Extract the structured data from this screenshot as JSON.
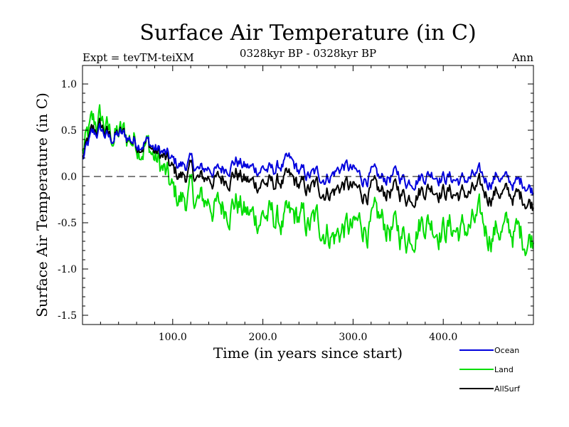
{
  "chart_data": {
    "type": "line",
    "title": "Surface Air Temperature (in C)",
    "subtitle_left": "Expt = tevTM-teiXM",
    "subtitle_center": "0328kyr BP - 0328kyr BP",
    "subtitle_right": "Ann",
    "xlabel": "Time (in years since start)",
    "ylabel": "Surface Air Temperature (in C)",
    "xlim": [
      0,
      500
    ],
    "ylim": [
      -1.6,
      1.2
    ],
    "x_ticks": [
      100,
      200,
      300,
      400
    ],
    "x_tick_labels": [
      "100.0",
      "200.0",
      "300.0",
      "400.0"
    ],
    "y_ticks": [
      -1.5,
      -1.0,
      -0.5,
      0.0,
      0.5,
      1.0
    ],
    "y_tick_labels": [
      "-1.5",
      "-1.0",
      "-0.5",
      "0.0",
      "0.5",
      "1.0"
    ],
    "reference_line": 0.0,
    "legend_position": "bottom-right, below plot",
    "series": [
      {
        "name": "Ocean",
        "color": "#0000dd",
        "x": [
          0,
          10,
          20,
          30,
          40,
          50,
          60,
          70,
          80,
          90,
          100,
          110,
          120,
          130,
          140,
          150,
          160,
          170,
          180,
          190,
          200,
          210,
          220,
          230,
          240,
          250,
          260,
          270,
          280,
          290,
          300,
          310,
          320,
          330,
          340,
          350,
          360,
          370,
          380,
          390,
          400,
          410,
          420,
          430,
          440,
          450,
          460,
          470,
          480,
          490,
          500
        ],
        "values": [
          0.18,
          0.42,
          0.5,
          0.4,
          0.45,
          0.42,
          0.38,
          0.4,
          0.3,
          0.25,
          0.15,
          0.12,
          0.15,
          0.05,
          0.1,
          0.05,
          0.12,
          0.18,
          0.1,
          0.08,
          0.1,
          0.05,
          0.12,
          0.15,
          0.05,
          0.0,
          0.02,
          0.0,
          0.05,
          0.12,
          0.05,
          -0.02,
          0.02,
          -0.05,
          0.0,
          0.02,
          -0.05,
          0.0,
          0.02,
          0.05,
          0.0,
          -0.02,
          -0.05,
          -0.02,
          0.0,
          -0.05,
          0.02,
          -0.05,
          -0.08,
          -0.05,
          -0.15
        ]
      },
      {
        "name": "Land",
        "color": "#00dd00",
        "x": [
          0,
          10,
          20,
          30,
          40,
          50,
          60,
          70,
          80,
          90,
          100,
          110,
          120,
          130,
          140,
          150,
          160,
          170,
          180,
          190,
          200,
          210,
          220,
          230,
          240,
          250,
          260,
          270,
          280,
          290,
          300,
          310,
          320,
          330,
          340,
          350,
          360,
          370,
          380,
          390,
          400,
          410,
          420,
          430,
          440,
          450,
          460,
          470,
          480,
          490,
          500
        ],
        "values": [
          0.25,
          0.5,
          0.62,
          0.45,
          0.45,
          0.42,
          0.4,
          0.38,
          0.2,
          0.05,
          -0.2,
          -0.25,
          -0.2,
          -0.3,
          -0.25,
          -0.35,
          -0.3,
          -0.25,
          -0.4,
          -0.45,
          -0.4,
          -0.45,
          -0.5,
          -0.5,
          -0.45,
          -0.55,
          -0.5,
          -0.55,
          -0.65,
          -0.55,
          -0.6,
          -0.5,
          -0.55,
          -0.5,
          -0.55,
          -0.6,
          -0.65,
          -0.5,
          -0.45,
          -0.5,
          -0.55,
          -0.55,
          -0.6,
          -0.55,
          -0.5,
          -0.6,
          -0.55,
          -0.6,
          -0.6,
          -0.65,
          -0.65
        ]
      },
      {
        "name": "AllSurf",
        "color": "#000000",
        "x": [
          0,
          10,
          20,
          30,
          40,
          50,
          60,
          70,
          80,
          90,
          100,
          110,
          120,
          130,
          140,
          150,
          160,
          170,
          180,
          190,
          200,
          210,
          220,
          230,
          240,
          250,
          260,
          270,
          280,
          290,
          300,
          310,
          320,
          330,
          340,
          350,
          360,
          370,
          380,
          390,
          400,
          410,
          420,
          430,
          440,
          450,
          460,
          470,
          480,
          490,
          500
        ],
        "values": [
          0.2,
          0.44,
          0.54,
          0.42,
          0.45,
          0.42,
          0.38,
          0.39,
          0.27,
          0.2,
          0.05,
          0.0,
          0.05,
          -0.05,
          0.0,
          -0.05,
          0.0,
          0.05,
          -0.05,
          -0.08,
          -0.05,
          -0.1,
          -0.05,
          -0.05,
          -0.1,
          -0.15,
          -0.12,
          -0.15,
          -0.15,
          -0.08,
          -0.15,
          -0.18,
          -0.15,
          -0.2,
          -0.15,
          -0.15,
          -0.22,
          -0.15,
          -0.12,
          -0.1,
          -0.15,
          -0.18,
          -0.2,
          -0.18,
          -0.15,
          -0.2,
          -0.15,
          -0.2,
          -0.22,
          -0.22,
          -0.3
        ]
      }
    ]
  }
}
